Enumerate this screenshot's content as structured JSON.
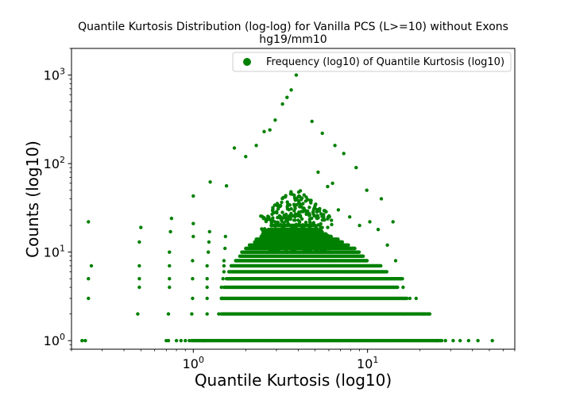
{
  "chart_data": {
    "type": "scatter",
    "title": "Quantile Kurtosis Distribution (log-log) for Vanilla PCS (L>=10) without Exons",
    "subtitle": "hg19/mm10",
    "xlabel": "Quantile Kurtosis (log10)",
    "ylabel": "Counts (log10)",
    "xscale": "log",
    "yscale": "log",
    "xlim": [
      0.2,
      70
    ],
    "ylim": [
      0.8,
      2000
    ],
    "x_ticks": [
      {
        "value": 1,
        "base": "10",
        "exp": "0"
      },
      {
        "value": 10,
        "base": "10",
        "exp": "1"
      }
    ],
    "y_ticks": [
      {
        "value": 1,
        "base": "10",
        "exp": "0"
      },
      {
        "value": 10,
        "base": "10",
        "exp": "1"
      },
      {
        "value": 100,
        "base": "10",
        "exp": "2"
      },
      {
        "value": 1000,
        "base": "10",
        "exp": "3"
      }
    ],
    "legend": {
      "position": "top-right",
      "label": "Frequency (log10) of Quantile Kurtosis (log10)"
    },
    "color": "#008000",
    "grid": false,
    "series": [
      {
        "points": [
          [
            0.23,
            1
          ],
          [
            0.24,
            1
          ],
          [
            0.25,
            22
          ],
          [
            0.25,
            5
          ],
          [
            0.25,
            3
          ],
          [
            0.26,
            7
          ],
          [
            0.48,
            2
          ],
          [
            0.49,
            7
          ],
          [
            0.49,
            5
          ],
          [
            0.49,
            4
          ],
          [
            0.49,
            13
          ],
          [
            0.5,
            19
          ],
          [
            0.7,
            1
          ],
          [
            0.72,
            1
          ],
          [
            0.72,
            2
          ],
          [
            0.73,
            4
          ],
          [
            0.73,
            5
          ],
          [
            0.73,
            7
          ],
          [
            0.73,
            10
          ],
          [
            0.74,
            17
          ],
          [
            0.75,
            24
          ],
          [
            0.8,
            1
          ],
          [
            0.85,
            1
          ],
          [
            0.9,
            1
          ],
          [
            0.95,
            1
          ],
          [
            0.98,
            2
          ],
          [
            0.99,
            3
          ],
          [
            0.99,
            5
          ],
          [
            0.99,
            8
          ],
          [
            1.0,
            15
          ],
          [
            1.0,
            21
          ],
          [
            1.0,
            43
          ],
          [
            1.15,
            1
          ],
          [
            1.2,
            2
          ],
          [
            1.2,
            3
          ],
          [
            1.2,
            4
          ],
          [
            1.2,
            5
          ],
          [
            1.2,
            7
          ],
          [
            1.22,
            10
          ],
          [
            1.23,
            13
          ],
          [
            1.24,
            17
          ],
          [
            1.25,
            62
          ],
          [
            1.4,
            2
          ],
          [
            1.45,
            3
          ],
          [
            1.45,
            4
          ],
          [
            1.48,
            5
          ],
          [
            1.5,
            6
          ],
          [
            1.5,
            7
          ],
          [
            1.5,
            8
          ],
          [
            1.52,
            11
          ],
          [
            1.53,
            15
          ],
          [
            1.55,
            56
          ],
          [
            1.72,
            150
          ],
          [
            2.0,
            120
          ],
          [
            2.3,
            160
          ],
          [
            2.55,
            230
          ],
          [
            2.75,
            240
          ],
          [
            2.95,
            310
          ],
          [
            3.25,
            470
          ],
          [
            3.45,
            560
          ],
          [
            3.65,
            680
          ],
          [
            3.9,
            1000
          ],
          [
            4.8,
            300
          ],
          [
            5.5,
            220
          ],
          [
            6.5,
            160
          ],
          [
            7.3,
            130
          ],
          [
            8.6,
            90
          ],
          [
            5.2,
            80
          ],
          [
            5.9,
            55
          ],
          [
            6.3,
            60
          ],
          [
            9.9,
            50
          ],
          [
            12.0,
            40
          ],
          [
            14.0,
            22
          ],
          [
            6.8,
            30
          ],
          [
            7.9,
            25
          ],
          [
            9.0,
            20
          ],
          [
            10.3,
            22
          ],
          [
            11.5,
            18
          ],
          [
            13.0,
            12
          ],
          [
            14.5,
            8
          ],
          [
            15.5,
            5
          ],
          [
            16.0,
            4
          ],
          [
            17.5,
            3
          ],
          [
            19.0,
            3
          ],
          [
            21.0,
            2
          ],
          [
            22.5,
            2
          ],
          [
            25.0,
            1
          ],
          [
            28.0,
            1
          ],
          [
            31.0,
            1
          ],
          [
            34.0,
            1
          ],
          [
            38.0,
            1
          ],
          [
            43.0,
            1
          ],
          [
            52.0,
            1
          ]
        ]
      }
    ]
  }
}
